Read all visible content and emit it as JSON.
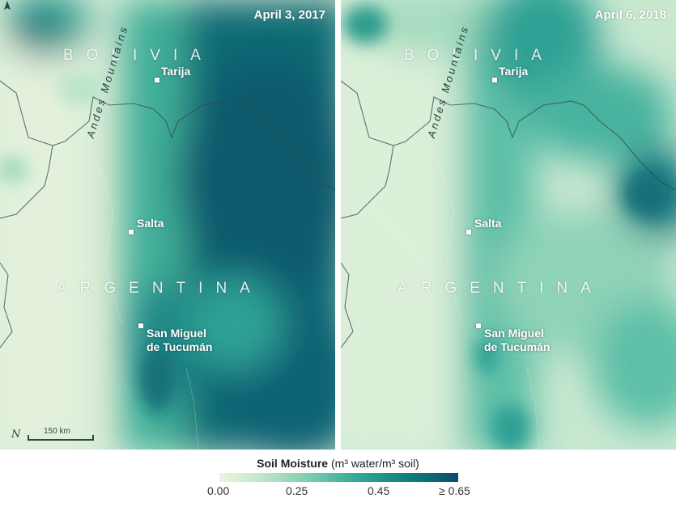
{
  "panels": [
    {
      "date": "April 3, 2017"
    },
    {
      "date": "April 6, 2018"
    }
  ],
  "labels": {
    "bolivia": "BOLIVIA",
    "argentina": "ARGENTINA",
    "mountains": "Andes Mountains",
    "city_tarija": "Tarija",
    "city_salta": "Salta",
    "city_tucuman_line1": "San Miguel",
    "city_tucuman_line2": "de Tucumán"
  },
  "scale": {
    "label": "150 km",
    "north_glyph": "N"
  },
  "legend": {
    "title": "Soil Moisture",
    "units": "(m³ water/m³ soil)",
    "ticks": [
      "0.00",
      "0.25",
      "0.45",
      "≥ 0.65"
    ]
  },
  "colors": {
    "dry": "#e9f6df",
    "mid": "#37ac99",
    "wet": "#0a4d6b"
  }
}
